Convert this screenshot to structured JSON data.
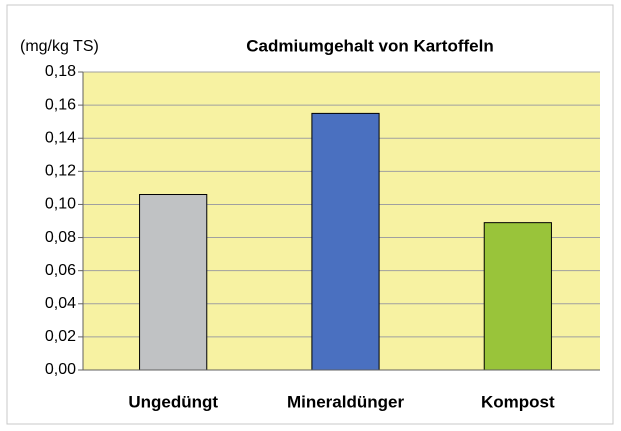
{
  "chart_data": {
    "type": "bar",
    "title": "Cadmiumgehalt von Kartoffeln",
    "y_label": "(mg/kg TS)",
    "categories": [
      "Ungedüngt",
      "Mineraldünger",
      "Kompost"
    ],
    "values": [
      0.106,
      0.155,
      0.089
    ],
    "colors": [
      "#c0c2c4",
      "#4a70c0",
      "#99c43a"
    ],
    "ylim": [
      0,
      0.18
    ],
    "yticks": [
      {
        "value": 0,
        "label": "0,00"
      },
      {
        "value": 0.02,
        "label": "0,02"
      },
      {
        "value": 0.04,
        "label": "0,04"
      },
      {
        "value": 0.06,
        "label": "0,06"
      },
      {
        "value": 0.08,
        "label": "0,08"
      },
      {
        "value": 0.1,
        "label": "0,10"
      },
      {
        "value": 0.12,
        "label": "0,12"
      },
      {
        "value": 0.14,
        "label": "0,14"
      },
      {
        "value": 0.16,
        "label": "0,16"
      },
      {
        "value": 0.18,
        "label": "0,18"
      }
    ],
    "grid": true
  }
}
